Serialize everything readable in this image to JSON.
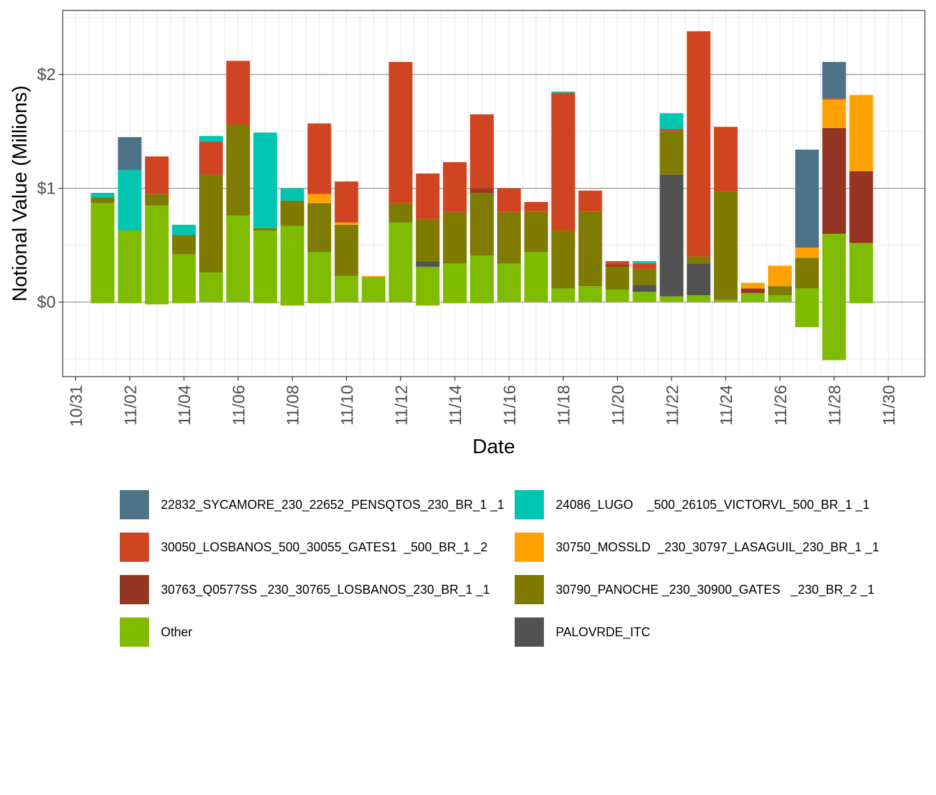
{
  "chart_data": {
    "type": "bar",
    "stacked": true,
    "title": "",
    "xlabel": "Date",
    "ylabel": "Notional Value (Millions)",
    "ylim": [
      -0.62,
      2.55
    ],
    "y_ticks": [
      {
        "value": 0,
        "label": "$0"
      },
      {
        "value": 1,
        "label": "$1"
      },
      {
        "value": 2,
        "label": "$2"
      }
    ],
    "x_ticks": [
      "10/31",
      "11/02",
      "11/04",
      "11/06",
      "11/08",
      "11/10",
      "11/12",
      "11/14",
      "11/16",
      "11/18",
      "11/20",
      "11/22",
      "11/24",
      "11/26",
      "11/28",
      "11/30"
    ],
    "grid": true,
    "legend_position": "bottom",
    "categories": [
      "11/01",
      "11/02",
      "11/03",
      "11/04",
      "11/05",
      "11/06",
      "11/07",
      "11/08",
      "11/09",
      "11/10",
      "11/11",
      "11/12",
      "11/13",
      "11/14",
      "11/15",
      "11/16",
      "11/17",
      "11/18",
      "11/19",
      "11/20",
      "11/21",
      "11/22",
      "11/23",
      "11/24",
      "11/25",
      "11/26",
      "11/27",
      "11/28",
      "11/29",
      "11/30"
    ],
    "series": [
      {
        "name": "Other",
        "color": "#7fbc00",
        "values": [
          0.87,
          0.63,
          0.85,
          0.42,
          0.26,
          0.76,
          0.63,
          0.67,
          0.44,
          0.23,
          0.22,
          0.7,
          0.31,
          0.34,
          0.41,
          0.34,
          0.44,
          0.12,
          0.14,
          0.11,
          0.09,
          0.05,
          0.06,
          0.02,
          0.08,
          0.06,
          0.12,
          0.6,
          0.52,
          0
        ],
        "neg": [
          -0.01,
          -0.01,
          -0.02,
          -0.01,
          0,
          0,
          -0.01,
          -0.03,
          -0.01,
          0,
          0,
          0,
          -0.03,
          -0.01,
          -0.01,
          0,
          0,
          0,
          0,
          0,
          0,
          0,
          0,
          0,
          0,
          0,
          -0.22,
          -0.51,
          -0.01,
          0
        ]
      },
      {
        "name": "PALOVRDE_ITC",
        "color": "#525252",
        "values": [
          0,
          0,
          0,
          0,
          0,
          0,
          0,
          0,
          0,
          0,
          0,
          0,
          0.05,
          0,
          0,
          0,
          0,
          0,
          0,
          0,
          0.06,
          1.07,
          0.28,
          0,
          0,
          0,
          0,
          0,
          0,
          0
        ]
      },
      {
        "name": "30790_PANOCHE _230_30900_GATES   _230_BR_2 _1",
        "color": "#7f7a00",
        "values": [
          0.05,
          0,
          0.1,
          0.17,
          0.86,
          0.8,
          0.02,
          0.22,
          0.43,
          0.45,
          0,
          0.17,
          0.37,
          0.45,
          0.55,
          0.45,
          0.36,
          0.51,
          0.66,
          0.2,
          0.14,
          0.38,
          0.06,
          0.95,
          0,
          0.08,
          0.27,
          0,
          0,
          0
        ]
      },
      {
        "name": "30763_Q0577SS _230_30765_LOSBANOS_230_BR_1 _1",
        "color": "#953523",
        "values": [
          0,
          0,
          0,
          0,
          0,
          0,
          0,
          0,
          0,
          0,
          0,
          0,
          0,
          0,
          0.04,
          0,
          0,
          0,
          0,
          0.02,
          0,
          0,
          0,
          0,
          0.04,
          0,
          0,
          0.93,
          0.63,
          0
        ]
      },
      {
        "name": "30750_MOSSLD  _230_30797_LASAGUIL_230_BR_1 _1",
        "color": "#ffa200",
        "values": [
          0,
          0,
          0,
          0,
          0,
          0,
          0,
          0,
          0.08,
          0.02,
          0.01,
          0,
          0,
          0,
          0,
          0,
          0,
          0,
          0,
          0,
          0,
          0,
          0,
          0,
          0.05,
          0.18,
          0.09,
          0.25,
          0.67,
          0
        ]
      },
      {
        "name": "30050_LOSBANOS_500_30055_GATES1  _500_BR_1 _2",
        "color": "#d04521",
        "values": [
          0,
          0,
          0.33,
          0,
          0.29,
          0.56,
          0,
          0,
          0.62,
          0.36,
          0,
          1.24,
          0.4,
          0.44,
          0.65,
          0.21,
          0.08,
          1.21,
          0.18,
          0.03,
          0.05,
          0.02,
          1.98,
          0.57,
          0,
          0,
          0,
          0.01,
          0,
          0
        ]
      },
      {
        "name": "24086_LUGO    _500_26105_VICTORVL_500_BR_1 _1",
        "color": "#00c6b1",
        "values": [
          0.04,
          0.53,
          0,
          0.09,
          0.05,
          0,
          0.84,
          0.11,
          0,
          0,
          0,
          0,
          0,
          0,
          0,
          0,
          0,
          0.01,
          0,
          0,
          0.02,
          0.14,
          0,
          0,
          0,
          0,
          0,
          0,
          0,
          0
        ]
      },
      {
        "name": "22832_SYCAMORE_230_22652_PENSQTOS_230_BR_1 _1",
        "color": "#4d7388",
        "values": [
          0,
          0.29,
          0,
          0,
          0,
          0,
          0,
          0,
          0,
          0,
          0,
          0,
          0,
          0,
          0,
          0,
          0,
          0,
          0,
          0,
          0,
          0,
          0,
          0,
          0,
          0,
          0.86,
          0.32,
          0,
          0
        ]
      }
    ],
    "legend": [
      {
        "name": "22832_SYCAMORE_230_22652_PENSQTOS_230_BR_1 _1",
        "color": "#4d7388"
      },
      {
        "name": "24086_LUGO    _500_26105_VICTORVL_500_BR_1 _1",
        "color": "#00c6b1"
      },
      {
        "name": "30050_LOSBANOS_500_30055_GATES1  _500_BR_1 _2",
        "color": "#d04521"
      },
      {
        "name": "30750_MOSSLD  _230_30797_LASAGUIL_230_BR_1 _1",
        "color": "#ffa200"
      },
      {
        "name": "30763_Q0577SS _230_30765_LOSBANOS_230_BR_1 _1",
        "color": "#953523"
      },
      {
        "name": "30790_PANOCHE _230_30900_GATES   _230_BR_2 _1",
        "color": "#7f7a00"
      },
      {
        "name": "Other",
        "color": "#7fbc00"
      },
      {
        "name": "PALOVRDE_ITC",
        "color": "#525252"
      }
    ]
  }
}
